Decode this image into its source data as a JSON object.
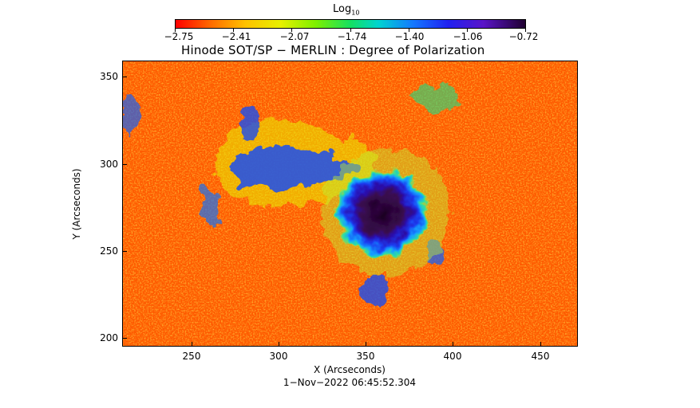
{
  "colorbar": {
    "title_main": "Log",
    "title_sub": "10",
    "ticks": [
      "−2.75",
      "−2.41",
      "−2.07",
      "−1.74",
      "−1.40",
      "−1.06",
      "−0.72"
    ],
    "colors": [
      "#ff0000",
      "#ff6a00",
      "#ffc200",
      "#e8f000",
      "#7ff000",
      "#14e060",
      "#00d4d0",
      "#1478ff",
      "#2020f0",
      "#5a14c8",
      "#200030"
    ]
  },
  "figure": {
    "title": "Hinode SOT/SP − MERLIN : Degree of Polarization",
    "xlabel": "X (Arcseconds)",
    "ylabel": "Y (Arcseconds)",
    "timestamp": "1−Nov−2022 06:45:52.304",
    "x_ticks": [
      "250",
      "300",
      "350",
      "400",
      "450"
    ],
    "y_ticks": [
      "350",
      "300",
      "250",
      "200"
    ]
  }
}
